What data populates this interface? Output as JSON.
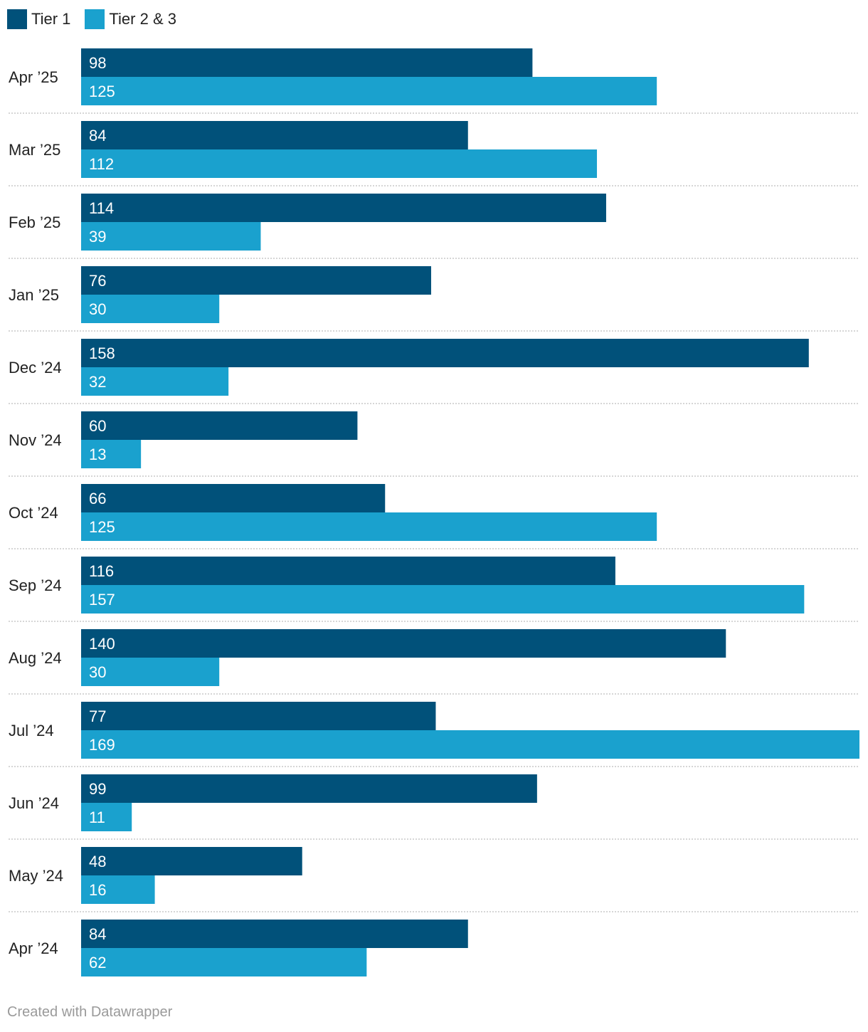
{
  "chart_data": {
    "type": "bar",
    "orientation": "horizontal",
    "categories": [
      "Apr ’25",
      "Mar ’25",
      "Feb ’25",
      "Jan ’25",
      "Dec ’24",
      "Nov ’24",
      "Oct ’24",
      "Sep ’24",
      "Aug ’24",
      "Jul ’24",
      "Jun ’24",
      "May ’24",
      "Apr ’24"
    ],
    "series": [
      {
        "name": "Tier 1",
        "color": "#01517a",
        "values": [
          98,
          84,
          114,
          76,
          158,
          60,
          66,
          116,
          140,
          77,
          99,
          48,
          84
        ]
      },
      {
        "name": "Tier 2 & 3",
        "color": "#1aa1ce",
        "values": [
          125,
          112,
          39,
          30,
          32,
          13,
          125,
          157,
          30,
          169,
          11,
          16,
          62
        ]
      }
    ],
    "xlim": [
      0,
      169
    ],
    "legend_position": "top-left",
    "data_labels": "inside-left",
    "grid": false,
    "separators": "dotted"
  },
  "credit": "Created with Datawrapper"
}
